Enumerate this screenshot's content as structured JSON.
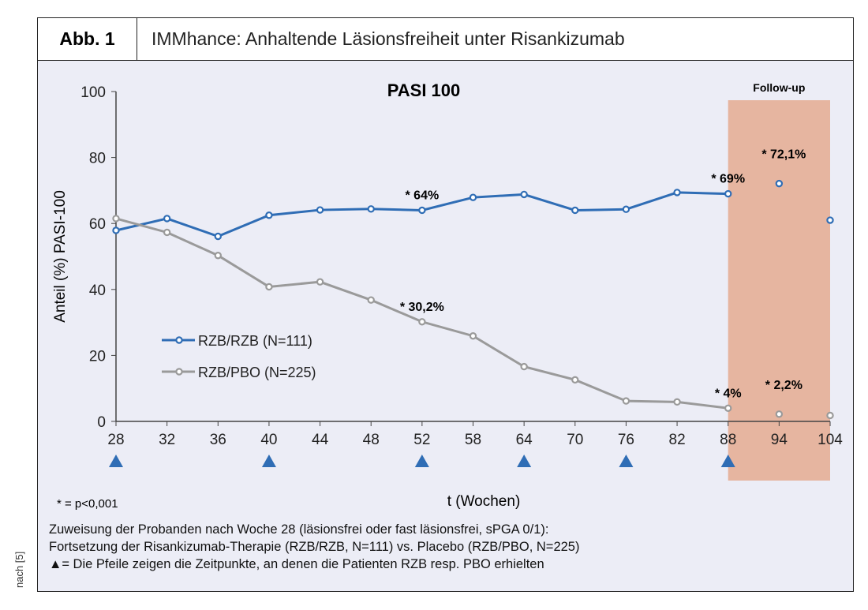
{
  "header": {
    "label": "Abb. 1",
    "title": "IMMhance: Anhaltende Läsionsfreiheit unter Risankizumab"
  },
  "chart_data": {
    "type": "line",
    "title": "PASI 100",
    "xlabel": "t (Wochen)",
    "ylabel": "Anteil (%) PASI-100",
    "ylim": [
      0,
      100
    ],
    "yticks": [
      "0",
      "20",
      "40",
      "60",
      "80",
      "100"
    ],
    "categories": [
      "28",
      "32",
      "36",
      "40",
      "44",
      "48",
      "52",
      "58",
      "64",
      "70",
      "76",
      "82",
      "88",
      "94",
      "104"
    ],
    "series": [
      {
        "name": "RZB/RZB (N=111)",
        "color": "#2f6db5",
        "values": [
          57.9,
          61.5,
          56.1,
          62.5,
          64.1,
          64.4,
          64.0,
          67.9,
          68.8,
          64.0,
          64.3,
          69.4,
          69.0,
          72.1,
          61.0
        ],
        "connected_through": "88"
      },
      {
        "name": "RZB/PBO (N=225)",
        "color": "#9a9a9a",
        "values": [
          61.5,
          57.3,
          50.3,
          40.8,
          42.3,
          36.8,
          30.2,
          25.9,
          16.6,
          12.6,
          6.2,
          5.9,
          4.0,
          2.2,
          1.8
        ],
        "connected_through": "88"
      }
    ],
    "annotations": [
      {
        "x": "52",
        "series": 0,
        "text": "* 64%"
      },
      {
        "x": "88",
        "series": 0,
        "text": "* 69%"
      },
      {
        "x": "94",
        "series": 0,
        "text": "* 72,1%"
      },
      {
        "x": "52",
        "series": 1,
        "text": "* 30,2%"
      },
      {
        "x": "88",
        "series": 1,
        "text": "* 4%"
      },
      {
        "x": "94",
        "series": 1,
        "text": "* 2,2%"
      }
    ],
    "shaded_region": {
      "from": "88",
      "to": "104",
      "label": "Follow-up",
      "color": "#e6b5a0"
    },
    "markers": {
      "symbol": "triangle",
      "color": "#2f6db5",
      "at": [
        "28",
        "40",
        "52",
        "64",
        "76",
        "88"
      ]
    },
    "legend": "center-left",
    "grid": false
  },
  "footnote": "* = p<0,001",
  "notes": [
    "Zuweisung der Probanden nach Woche 28 (läsionsfrei oder fast läsionsfrei, sPGA 0/1):",
    "Fortsetzung der Risankizumab-Therapie (RZB/RZB, N=111) vs. Placebo (RZB/PBO, N=225)",
    "▲= Die Pfeile zeigen die Zeitpunkte, an denen die Patienten RZB resp. PBO erhielten"
  ],
  "source": "nach [5]"
}
